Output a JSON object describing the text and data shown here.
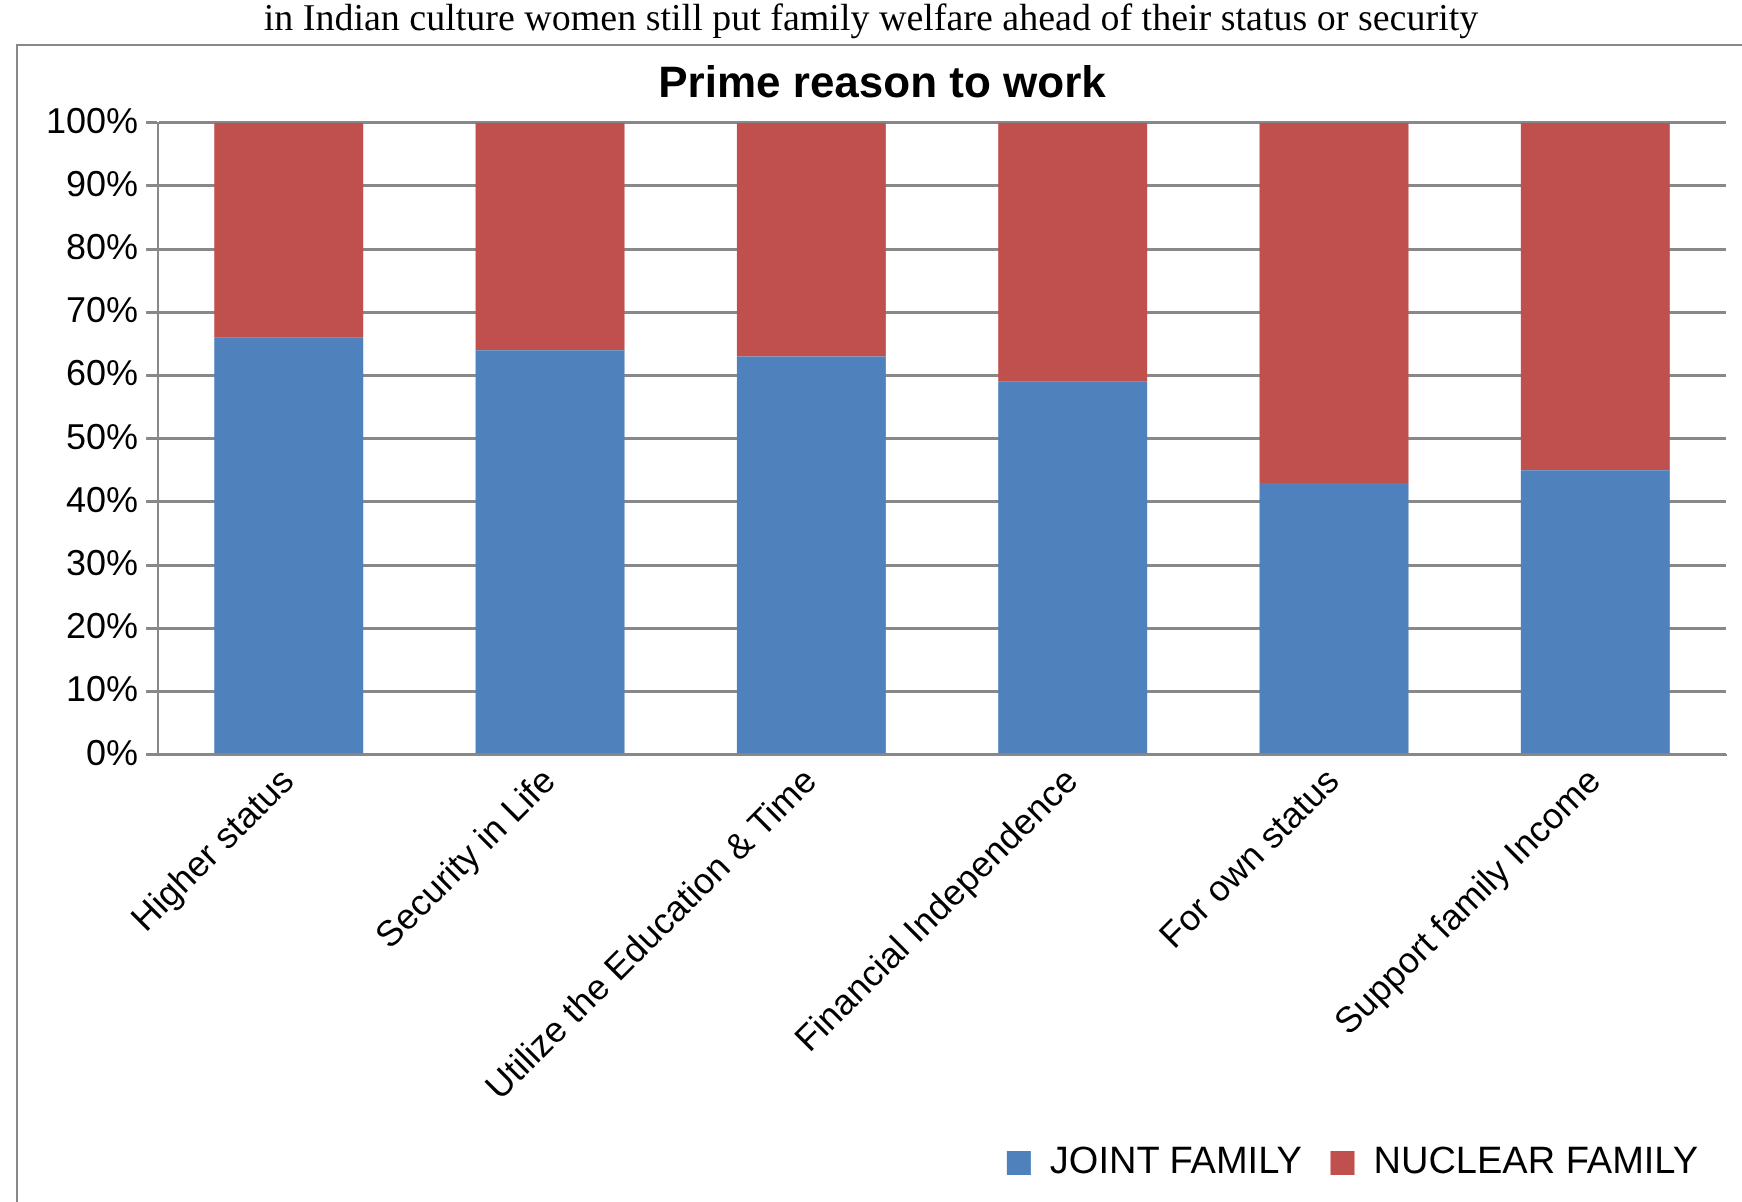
{
  "chart_data": {
    "type": "bar",
    "title": "Prime reason to work",
    "annotations": [
      "in Indian culture women still put family welfare ahead of their status or security"
    ],
    "categories": [
      "Higher status",
      "Security in Life",
      "Utilize the Education & Time",
      "Financial Independence",
      "For own status",
      "Support family Income"
    ],
    "series": [
      {
        "name": "JOINT FAMILY",
        "color": "#4f81bd",
        "values": [
          66,
          64,
          63,
          59,
          43,
          45
        ]
      },
      {
        "name": "NUCLEAR FAMILY",
        "color": "#c0504d",
        "values": [
          34,
          36,
          37,
          41,
          57,
          55
        ]
      }
    ],
    "stacked": true,
    "ylim": [
      0,
      100
    ],
    "yticks": [
      {
        "value": 0,
        "label": "0%"
      },
      {
        "value": 10,
        "label": "10%"
      },
      {
        "value": 20,
        "label": "20%"
      },
      {
        "value": 30,
        "label": "30%"
      },
      {
        "value": 40,
        "label": "40%"
      },
      {
        "value": 50,
        "label": "50%"
      },
      {
        "value": 60,
        "label": "60%"
      },
      {
        "value": 70,
        "label": "70%"
      },
      {
        "value": 80,
        "label": "80%"
      },
      {
        "value": 90,
        "label": "90%"
      },
      {
        "value": 100,
        "label": "100%"
      }
    ],
    "grid": "y",
    "legend": "bottom right"
  }
}
